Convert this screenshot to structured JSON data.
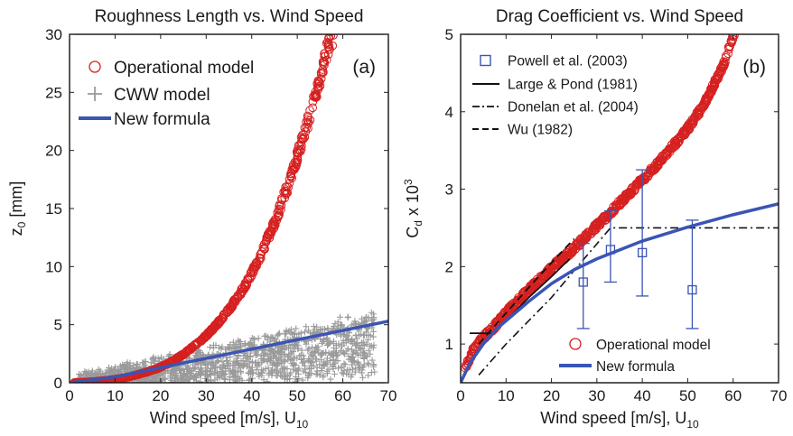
{
  "chart_data": [
    {
      "type": "scatter",
      "panel_label": "(a)",
      "title": "Roughness Length vs. Wind Speed",
      "xlabel": "Wind speed [m/s], U",
      "xlabel_sub": "10",
      "ylabel": "z",
      "ylabel_sub": "0",
      "ylabel_unit": " [mm]",
      "xlim": [
        0,
        70
      ],
      "ylim": [
        0,
        30
      ],
      "xticks": [
        "0",
        "10",
        "20",
        "30",
        "40",
        "50",
        "60",
        "70"
      ],
      "yticks": [
        "0",
        "5",
        "10",
        "15",
        "20",
        "25",
        "30"
      ],
      "legend_position": "top-left",
      "series": [
        {
          "name": "Operational model",
          "kind": "circles",
          "color": "#d62020",
          "x": [
            2,
            5,
            8,
            10,
            12,
            15,
            18,
            20,
            22,
            25,
            28,
            30,
            32,
            35,
            38,
            40,
            42,
            45,
            48,
            50,
            52,
            55,
            57,
            58
          ],
          "y": [
            0.02,
            0.08,
            0.2,
            0.3,
            0.42,
            0.7,
            1.05,
            1.35,
            1.72,
            2.45,
            3.35,
            4.05,
            4.85,
            6.3,
            8.0,
            9.4,
            11.0,
            13.8,
            17.0,
            19.5,
            22.0,
            26.3,
            29.3,
            30.0
          ]
        },
        {
          "name": "CWW model",
          "kind": "plus",
          "color": "#9a9a9a",
          "x_range": [
            2,
            67
          ],
          "y_trend": "0 to 3.3 mm with spread up to about 6.5 mm"
        },
        {
          "name": "New formula",
          "kind": "line",
          "color": "#3a55b4",
          "x": [
            0,
            10,
            20,
            30,
            40,
            50,
            60,
            70
          ],
          "y": [
            0,
            0.5,
            1.3,
            2.1,
            2.9,
            3.7,
            4.5,
            5.3
          ]
        }
      ]
    },
    {
      "type": "scatter",
      "panel_label": "(b)",
      "title": "Drag Coefficient vs. Wind Speed",
      "xlabel": "Wind speed [m/s], U",
      "xlabel_sub": "10",
      "ylabel": "C",
      "ylabel_sub": "d",
      "ylabel_unit": " x 10",
      "ylabel_sup": "3",
      "xlim": [
        0,
        70
      ],
      "ylim": [
        0.5,
        5
      ],
      "xticks": [
        "0",
        "10",
        "20",
        "30",
        "40",
        "50",
        "60",
        "70"
      ],
      "yticks": [
        "1",
        "2",
        "3",
        "4",
        "5"
      ],
      "legend_position": "top-left and bottom-right",
      "series": [
        {
          "name": "Operational model",
          "kind": "circles",
          "color": "#d62020",
          "x": [
            1,
            3,
            5,
            7,
            9,
            10,
            12,
            15,
            18,
            20,
            22,
            25,
            28,
            30,
            33,
            35,
            38,
            40,
            43,
            45,
            48,
            50,
            53,
            55,
            58,
            60
          ],
          "y": [
            0.68,
            0.95,
            1.08,
            1.2,
            1.33,
            1.4,
            1.52,
            1.7,
            1.86,
            1.98,
            2.08,
            2.24,
            2.41,
            2.53,
            2.7,
            2.82,
            3.0,
            3.12,
            3.3,
            3.44,
            3.64,
            3.78,
            4.04,
            4.26,
            4.62,
            4.98
          ]
        },
        {
          "name": "Powell et al. (2003)",
          "kind": "squares_with_errorbars",
          "color": "#3a55b4",
          "x": [
            27,
            33,
            40,
            51
          ],
          "y": [
            1.8,
            2.22,
            2.18,
            1.7
          ],
          "y_low": [
            1.2,
            1.8,
            1.62,
            1.2
          ],
          "y_high": [
            2.3,
            2.72,
            3.25,
            2.6
          ]
        },
        {
          "name": "Large & Pond (1981)",
          "kind": "line_solid",
          "color": "#111111",
          "x": [
            2,
            7,
            10,
            15,
            20,
            24
          ],
          "y": [
            1.14,
            1.14,
            1.3,
            1.6,
            1.87,
            2.1
          ]
        },
        {
          "name": "Donelan et al. (2004)",
          "kind": "line_dashdot",
          "color": "#111111",
          "x": [
            4,
            10,
            15,
            20,
            25,
            33,
            70
          ],
          "y": [
            0.6,
            1.0,
            1.3,
            1.6,
            1.95,
            2.5,
            2.5
          ]
        },
        {
          "name": "Wu (1982)",
          "kind": "line_dashed",
          "color": "#111111",
          "x": [
            4,
            10,
            15,
            20,
            25
          ],
          "y": [
            1.0,
            1.4,
            1.73,
            2.05,
            2.36
          ]
        },
        {
          "name": "New formula",
          "kind": "line",
          "color": "#3a55b4",
          "x": [
            0,
            2,
            5,
            8,
            10,
            15,
            20,
            25,
            30,
            40,
            50,
            60,
            70
          ],
          "y": [
            0.5,
            0.75,
            1.0,
            1.2,
            1.3,
            1.55,
            1.78,
            1.96,
            2.1,
            2.33,
            2.51,
            2.67,
            2.81
          ]
        }
      ]
    }
  ]
}
